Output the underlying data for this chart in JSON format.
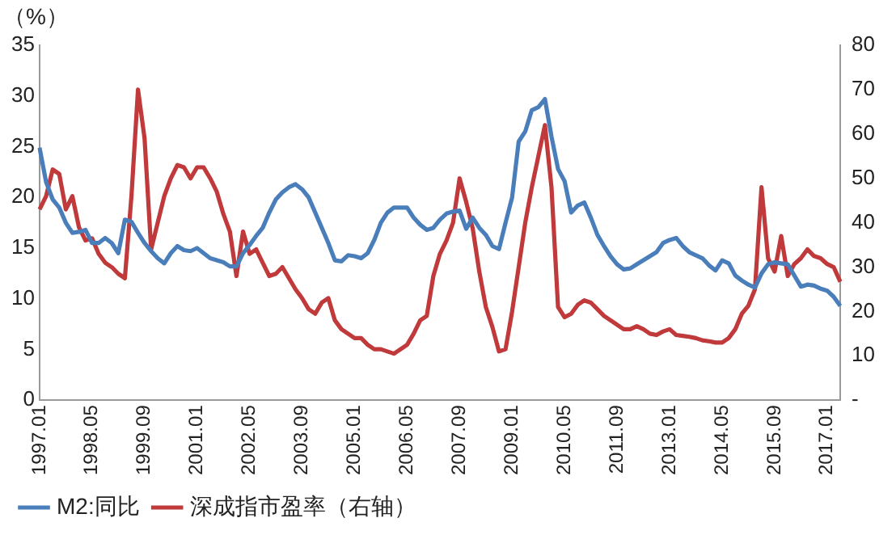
{
  "chart_data": {
    "type": "line",
    "ylabel": "（%）",
    "categories": [
      "1997.01",
      null,
      null,
      null,
      null,
      null,
      null,
      null,
      "1998.05",
      null,
      null,
      null,
      null,
      null,
      null,
      null,
      "1999.09",
      null,
      null,
      null,
      null,
      null,
      null,
      null,
      "2001.01",
      null,
      null,
      null,
      null,
      null,
      null,
      null,
      "2002.05",
      null,
      null,
      null,
      null,
      null,
      null,
      null,
      "2003.09",
      null,
      null,
      null,
      null,
      null,
      null,
      null,
      "2005.01",
      null,
      null,
      null,
      null,
      null,
      null,
      null,
      "2006.05",
      null,
      null,
      null,
      null,
      null,
      null,
      null,
      "2007.09",
      null,
      null,
      null,
      null,
      null,
      null,
      null,
      "2009.01",
      null,
      null,
      null,
      null,
      null,
      null,
      null,
      "2010.05",
      null,
      null,
      null,
      null,
      null,
      null,
      null,
      "2011.09",
      null,
      null,
      null,
      null,
      null,
      null,
      null,
      "2013.01",
      null,
      null,
      null,
      null,
      null,
      null,
      null,
      "2014.05",
      null,
      null,
      null,
      null,
      null,
      null,
      null,
      "2015.09",
      null,
      null,
      null,
      null,
      null,
      null,
      null,
      "2017.01",
      null,
      null
    ],
    "series": [
      {
        "name": "M2:同比",
        "color": "#4a7ebb",
        "values": [
          24.9,
          21.5,
          19.8,
          19,
          17.5,
          16.5,
          16.6,
          16.8,
          15.5,
          15.5,
          16,
          15.5,
          14.5,
          17.8,
          17.6,
          16.5,
          15.5,
          14.7,
          14,
          13.5,
          14.5,
          15.2,
          14.8,
          14.7,
          15,
          14.5,
          14,
          13.8,
          13.6,
          13.2,
          13.2,
          14.5,
          15.3,
          16.2,
          17,
          18.5,
          19.8,
          20.5,
          21,
          21.3,
          20.8,
          20,
          18.5,
          17,
          15.5,
          13.8,
          13.7,
          14.3,
          14.2,
          14,
          14.5,
          15.8,
          17.5,
          18.5,
          19,
          19,
          19,
          18,
          17.3,
          16.8,
          17,
          17.8,
          18.4,
          18.6,
          18.7,
          16.9,
          18,
          17,
          16.3,
          15.2,
          14.9,
          17.5,
          20,
          25.5,
          26.5,
          28.6,
          28.9,
          29.7,
          26,
          22.8,
          21.6,
          18.5,
          19.2,
          19.5,
          18,
          16.3,
          15.2,
          14.2,
          13.4,
          12.9,
          13,
          13.4,
          13.8,
          14.2,
          14.6,
          15.5,
          15.8,
          16,
          15.2,
          14.6,
          14.3,
          14,
          13.3,
          12.8,
          13.8,
          13.5,
          12.3,
          11.8,
          11.4,
          11.1,
          12.5,
          13.4,
          13.6,
          13.5,
          13.4,
          12.3,
          11.2,
          11.4,
          11.3,
          11,
          10.8,
          10.2,
          9.3
        ]
      },
      {
        "name": "深成指市盈率（右轴）",
        "color": "#c0393b",
        "axis": "y2",
        "values": [
          43,
          46,
          52,
          51,
          43,
          46,
          39,
          36,
          36.5,
          33,
          31,
          30,
          28.5,
          27.5,
          46,
          70,
          59,
          34,
          40,
          46,
          50,
          53,
          52.5,
          50,
          52.5,
          52.5,
          50,
          47,
          42,
          38,
          28,
          38,
          33,
          34,
          31,
          28,
          28.5,
          30,
          27.5,
          25,
          23,
          20.5,
          19.5,
          22,
          23,
          18,
          16,
          15,
          14,
          14,
          12.5,
          11.5,
          11.5,
          11,
          10.5,
          11.5,
          12.5,
          15,
          18,
          19,
          28,
          33,
          36,
          40,
          50,
          44.7,
          38.7,
          29,
          21,
          16.5,
          11,
          11.5,
          20,
          30,
          40,
          48,
          55,
          62,
          48,
          21,
          18.7,
          19.5,
          21.5,
          22.5,
          22,
          20.5,
          19,
          18,
          17,
          16,
          16,
          16.7,
          16,
          15,
          14.7,
          15.5,
          16,
          14.7,
          14.5,
          14.3,
          14,
          13.5,
          13.3,
          13,
          13,
          14,
          16,
          19.5,
          21.3,
          25,
          48,
          32,
          29,
          37,
          28,
          30.7,
          32,
          34,
          32.5,
          32,
          30.7,
          30,
          26.7
        ]
      }
    ],
    "ylim": [
      0,
      35
    ],
    "yticks": [
      0,
      5,
      10,
      15,
      20,
      25,
      30,
      35
    ],
    "y2lim": [
      0,
      80
    ],
    "y2ticks": [
      {
        "value": 0,
        "label": "-"
      },
      10,
      20,
      30,
      40,
      50,
      60,
      70,
      80
    ],
    "grid": false,
    "legend": "bottom",
    "marker": "none",
    "line_style": "solid"
  }
}
